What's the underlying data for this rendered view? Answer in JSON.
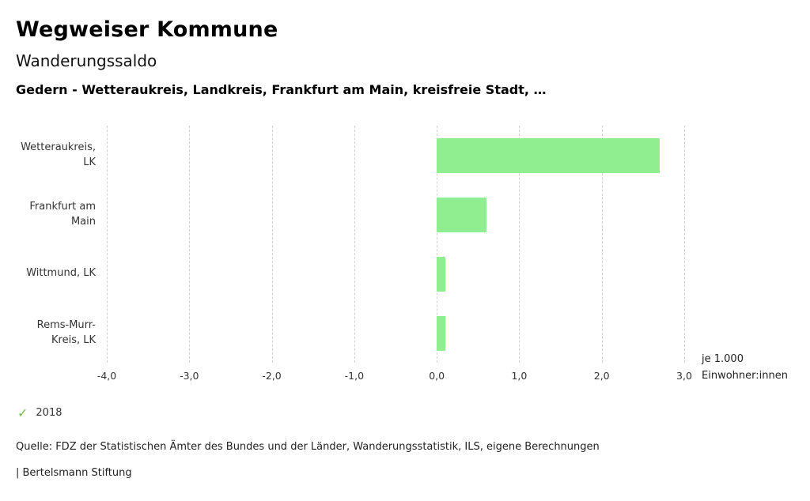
{
  "header": {
    "title": "Wegweiser Kommune",
    "subtitle": "Wanderungssaldo",
    "selection": "Gedern - Wetteraukreis, Landkreis, Frankfurt am Main, kreisfreie Stadt, …"
  },
  "chart_data": {
    "type": "bar",
    "orientation": "horizontal",
    "title": "Wanderungssaldo",
    "categories": [
      "Wetteraukreis, LK",
      "Frankfurt am Main",
      "Wittmund, LK",
      "Rems-Murr-Kreis, LK"
    ],
    "series": [
      {
        "name": "2018",
        "values": [
          2.7,
          0.6,
          0.1,
          0.1
        ]
      }
    ],
    "values": [
      2.7,
      0.6,
      0.1,
      0.1
    ],
    "xlim": [
      -4.0,
      3.0
    ],
    "x_tick_values": [
      -4,
      -3,
      -2,
      -1,
      0,
      1,
      2,
      3
    ],
    "x_tick_labels": [
      "-4,0",
      "-3,0",
      "-2,0",
      "-1,0",
      "0,0",
      "1,0",
      "2,0",
      "3,0"
    ],
    "axis_unit_line1": "je 1.000",
    "axis_unit_line2": "Einwohner:innen",
    "bar_color": "#90ee90",
    "grid": "dashed-vertical",
    "legend_position": "bottom-left"
  },
  "legend": {
    "year": "2018",
    "check_color": "#72bf44"
  },
  "footer": {
    "source": "Quelle: FDZ der Statistischen Ämter des Bundes und der Länder, Wanderungsstatistik, ILS, eigene Berechnungen",
    "brand": "| Bertelsmann Stiftung"
  }
}
